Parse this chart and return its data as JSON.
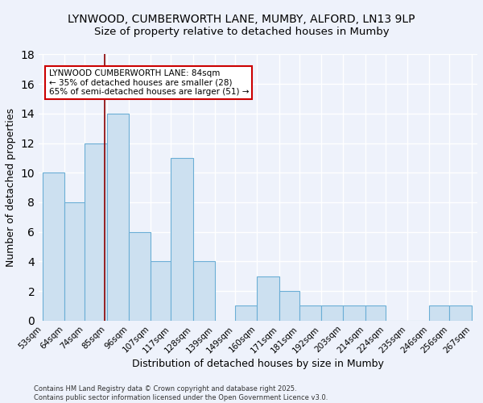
{
  "title_line1": "LYNWOOD, CUMBERWORTH LANE, MUMBY, ALFORD, LN13 9LP",
  "title_line2": "Size of property relative to detached houses in Mumby",
  "xlabel": "Distribution of detached houses by size in Mumby",
  "ylabel": "Number of detached properties",
  "bar_edges": [
    53,
    64,
    74,
    85,
    96,
    107,
    117,
    128,
    139,
    149,
    160,
    171,
    181,
    192,
    203,
    214,
    224,
    235,
    246,
    256,
    267
  ],
  "bar_heights": [
    10,
    8,
    12,
    14,
    6,
    4,
    11,
    4,
    0,
    1,
    3,
    2,
    1,
    1,
    1,
    1,
    0,
    0,
    1,
    1
  ],
  "bar_color": "#cce0f0",
  "bar_edge_color": "#6baed6",
  "vline_x": 84,
  "vline_color": "#8b0000",
  "ylim": [
    0,
    18
  ],
  "yticks": [
    0,
    2,
    4,
    6,
    8,
    10,
    12,
    14,
    16,
    18
  ],
  "annotation_text": "LYNWOOD CUMBERWORTH LANE: 84sqm\n← 35% of detached houses are smaller (28)\n65% of semi-detached houses are larger (51) →",
  "annotation_box_color": "#ffffff",
  "annotation_border_color": "#cc0000",
  "footnote": "Contains HM Land Registry data © Crown copyright and database right 2025.\nContains public sector information licensed under the Open Government Licence v3.0.",
  "background_color": "#eef2fb",
  "grid_color": "#ffffff",
  "title_fontsize": 10,
  "tick_label_fontsize": 7.5,
  "ylabel_fontsize": 9,
  "xlabel_fontsize": 9,
  "annotation_fontsize": 7.5
}
